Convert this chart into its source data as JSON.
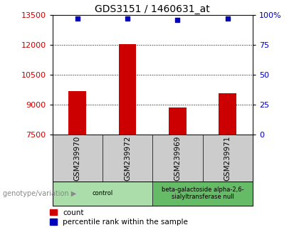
{
  "title": "GDS3151 / 1460631_at",
  "samples": [
    "GSM239970",
    "GSM239972",
    "GSM239969",
    "GSM239971"
  ],
  "counts": [
    9700,
    12050,
    8870,
    9580
  ],
  "percentiles": [
    97,
    97,
    96,
    97
  ],
  "ylim_left": [
    7500,
    13500
  ],
  "ylim_right": [
    0,
    100
  ],
  "yticks_left": [
    7500,
    9000,
    10500,
    12000,
    13500
  ],
  "yticks_right": [
    0,
    25,
    50,
    75,
    100
  ],
  "ytick_labels_right": [
    "0",
    "25",
    "50",
    "75",
    "100%"
  ],
  "bar_color": "#cc0000",
  "dot_color": "#0000bb",
  "bar_width": 0.35,
  "groups": [
    {
      "label": "control",
      "indices": [
        0,
        1
      ],
      "color": "#aaddaa"
    },
    {
      "label": "beta-galactoside alpha-2,6-\nsialyltransferase null",
      "indices": [
        2,
        3
      ],
      "color": "#66bb66"
    }
  ],
  "genotype_label": "genotype/variation",
  "legend_count_label": "count",
  "legend_pct_label": "percentile rank within the sample",
  "sample_box_color": "#cccccc",
  "sample_box_border": "#333333",
  "white": "#ffffff"
}
